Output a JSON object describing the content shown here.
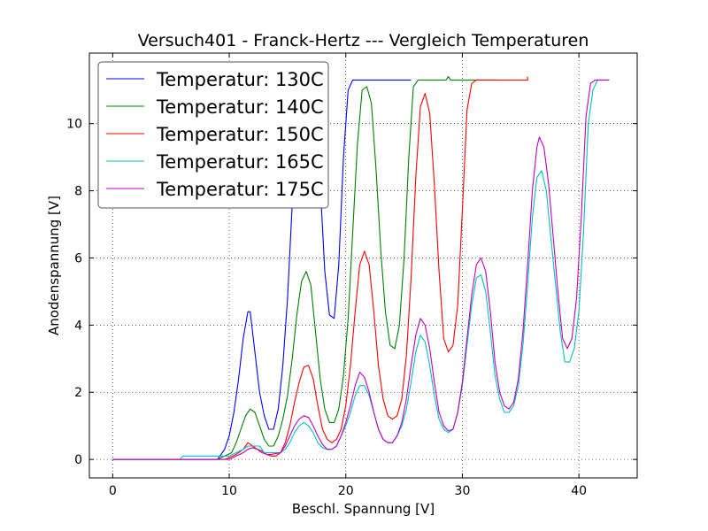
{
  "chart_data": {
    "type": "line",
    "title": "Versuch401 - Franck-Hertz --- Vergleich Temperaturen",
    "xlabel": "Beschl. Spannung [V]",
    "ylabel": "Anodenspannung [V]",
    "xlim": [
      -2,
      45
    ],
    "ylim": [
      -0.55,
      12.1
    ],
    "xticks": [
      0,
      10,
      20,
      30,
      40
    ],
    "yticks": [
      0,
      2,
      4,
      6,
      8,
      10
    ],
    "grid": true,
    "legend_position": "top-left",
    "series": [
      {
        "name": "Temperatur: 130C",
        "color": "#0000ff",
        "points": [
          [
            0,
            0
          ],
          [
            9,
            0
          ],
          [
            9.6,
            0.3
          ],
          [
            10,
            0.7
          ],
          [
            10.4,
            1.4
          ],
          [
            10.8,
            2.4
          ],
          [
            11.2,
            3.6
          ],
          [
            11.6,
            4.4
          ],
          [
            11.8,
            4.4
          ],
          [
            12.2,
            3.2
          ],
          [
            12.6,
            2.0
          ],
          [
            13,
            1.3
          ],
          [
            13.4,
            0.9
          ],
          [
            13.8,
            0.9
          ],
          [
            14.2,
            1.5
          ],
          [
            14.6,
            2.8
          ],
          [
            15,
            4.8
          ],
          [
            15.4,
            7.6
          ],
          [
            15.8,
            9.8
          ],
          [
            16.2,
            11.0
          ],
          [
            16.6,
            11.2
          ],
          [
            17,
            11.2
          ],
          [
            17.4,
            10.6
          ],
          [
            17.8,
            8.2
          ],
          [
            18.2,
            5.6
          ],
          [
            18.6,
            4.3
          ],
          [
            19,
            4.2
          ],
          [
            19.4,
            5.8
          ],
          [
            19.8,
            9.0
          ],
          [
            20.2,
            11.0
          ],
          [
            20.6,
            11.3
          ],
          [
            25.6,
            11.3
          ]
        ]
      },
      {
        "name": "Temperatur: 140C",
        "color": "#008000",
        "points": [
          [
            0,
            0
          ],
          [
            9,
            0
          ],
          [
            9.6,
            0.1
          ],
          [
            10.2,
            0.2
          ],
          [
            10.6,
            0.5
          ],
          [
            11,
            0.9
          ],
          [
            11.4,
            1.3
          ],
          [
            11.8,
            1.5
          ],
          [
            12.2,
            1.4
          ],
          [
            12.6,
            1.0
          ],
          [
            13,
            0.6
          ],
          [
            13.4,
            0.4
          ],
          [
            13.8,
            0.4
          ],
          [
            14.2,
            0.7
          ],
          [
            14.6,
            1.2
          ],
          [
            15,
            1.9
          ],
          [
            15.4,
            3.0
          ],
          [
            15.8,
            4.3
          ],
          [
            16.2,
            5.3
          ],
          [
            16.6,
            5.6
          ],
          [
            17,
            5.2
          ],
          [
            17.4,
            3.8
          ],
          [
            17.8,
            2.4
          ],
          [
            18.2,
            1.5
          ],
          [
            18.6,
            1.1
          ],
          [
            19,
            1.1
          ],
          [
            19.4,
            1.5
          ],
          [
            19.8,
            2.5
          ],
          [
            20.2,
            4.2
          ],
          [
            20.6,
            6.8
          ],
          [
            21,
            9.4
          ],
          [
            21.4,
            11.0
          ],
          [
            21.8,
            11.1
          ],
          [
            22.2,
            10.6
          ],
          [
            22.6,
            8.6
          ],
          [
            23,
            6.2
          ],
          [
            23.4,
            4.4
          ],
          [
            23.8,
            3.4
          ],
          [
            24.2,
            3.3
          ],
          [
            24.6,
            4.0
          ],
          [
            25,
            6.0
          ],
          [
            25.4,
            9.0
          ],
          [
            25.8,
            11.1
          ],
          [
            26.2,
            11.3
          ],
          [
            28.6,
            11.3
          ],
          [
            28.8,
            11.4
          ],
          [
            29,
            11.3
          ],
          [
            33,
            11.3
          ]
        ]
      },
      {
        "name": "Temperatur: 150C",
        "color": "#ff0000",
        "points": [
          [
            0,
            0
          ],
          [
            9.6,
            0
          ],
          [
            10,
            0.05
          ],
          [
            10.6,
            0.15
          ],
          [
            11.2,
            0.3
          ],
          [
            11.6,
            0.5
          ],
          [
            12,
            0.4
          ],
          [
            12.4,
            0.3
          ],
          [
            12.8,
            0.25
          ],
          [
            13.2,
            0.15
          ],
          [
            13.6,
            0.1
          ],
          [
            14,
            0.1
          ],
          [
            14.4,
            0.2
          ],
          [
            14.8,
            0.5
          ],
          [
            15.2,
            1.0
          ],
          [
            15.6,
            1.7
          ],
          [
            16,
            2.3
          ],
          [
            16.4,
            2.75
          ],
          [
            16.8,
            2.8
          ],
          [
            17.2,
            2.4
          ],
          [
            17.6,
            1.6
          ],
          [
            18,
            0.9
          ],
          [
            18.4,
            0.6
          ],
          [
            18.8,
            0.5
          ],
          [
            19.2,
            0.6
          ],
          [
            19.6,
            0.9
          ],
          [
            20,
            1.6
          ],
          [
            20.4,
            2.8
          ],
          [
            20.8,
            4.4
          ],
          [
            21.2,
            5.8
          ],
          [
            21.6,
            6.2
          ],
          [
            22,
            5.8
          ],
          [
            22.4,
            4.4
          ],
          [
            22.8,
            2.8
          ],
          [
            23.2,
            1.8
          ],
          [
            23.6,
            1.3
          ],
          [
            24,
            1.2
          ],
          [
            24.4,
            1.3
          ],
          [
            24.8,
            1.8
          ],
          [
            25.2,
            3.1
          ],
          [
            25.6,
            5.4
          ],
          [
            26,
            8.4
          ],
          [
            26.4,
            10.5
          ],
          [
            26.8,
            10.9
          ],
          [
            27.2,
            10.3
          ],
          [
            27.6,
            8.2
          ],
          [
            28,
            5.6
          ],
          [
            28.4,
            3.6
          ],
          [
            28.8,
            3.2
          ],
          [
            29.2,
            3.4
          ],
          [
            29.6,
            4.6
          ],
          [
            30,
            7.4
          ],
          [
            30.4,
            10.4
          ],
          [
            30.8,
            11.2
          ],
          [
            31.2,
            11.3
          ],
          [
            35.6,
            11.3
          ],
          [
            35.6,
            11.4
          ]
        ]
      },
      {
        "name": "Temperatur: 165C",
        "color": "#00bfbf",
        "points": [
          [
            0,
            0
          ],
          [
            5.8,
            0
          ],
          [
            6,
            0.1
          ],
          [
            10,
            0.1
          ],
          [
            10.6,
            0.2
          ],
          [
            11.2,
            0.3
          ],
          [
            11.6,
            0.4
          ],
          [
            12,
            0.4
          ],
          [
            12.6,
            0.4
          ],
          [
            13,
            0.2
          ],
          [
            13.6,
            0.2
          ],
          [
            14.4,
            0.2
          ],
          [
            14.8,
            0.3
          ],
          [
            15.2,
            0.5
          ],
          [
            15.6,
            0.8
          ],
          [
            16,
            1.0
          ],
          [
            16.4,
            1.1
          ],
          [
            16.8,
            1.0
          ],
          [
            17.2,
            0.8
          ],
          [
            17.6,
            0.5
          ],
          [
            18,
            0.35
          ],
          [
            18.4,
            0.3
          ],
          [
            18.8,
            0.3
          ],
          [
            19.2,
            0.4
          ],
          [
            19.6,
            0.7
          ],
          [
            20,
            1.0
          ],
          [
            20.4,
            1.4
          ],
          [
            20.8,
            1.9
          ],
          [
            21.2,
            2.2
          ],
          [
            21.6,
            2.2
          ],
          [
            22,
            1.9
          ],
          [
            22.4,
            1.4
          ],
          [
            22.8,
            0.9
          ],
          [
            23.2,
            0.6
          ],
          [
            23.6,
            0.5
          ],
          [
            24,
            0.5
          ],
          [
            24.4,
            0.7
          ],
          [
            24.8,
            1.0
          ],
          [
            25.2,
            1.5
          ],
          [
            25.6,
            2.3
          ],
          [
            26,
            3.2
          ],
          [
            26.4,
            3.7
          ],
          [
            26.8,
            3.5
          ],
          [
            27.2,
            2.8
          ],
          [
            27.6,
            1.9
          ],
          [
            28,
            1.2
          ],
          [
            28.4,
            0.9
          ],
          [
            28.8,
            0.8
          ],
          [
            29.2,
            0.9
          ],
          [
            29.6,
            1.4
          ],
          [
            30,
            2.2
          ],
          [
            30.4,
            3.4
          ],
          [
            30.8,
            4.6
          ],
          [
            31.2,
            5.4
          ],
          [
            31.6,
            5.5
          ],
          [
            32,
            5.0
          ],
          [
            32.4,
            3.8
          ],
          [
            32.8,
            2.5
          ],
          [
            33.2,
            1.8
          ],
          [
            33.6,
            1.4
          ],
          [
            34,
            1.4
          ],
          [
            34.4,
            1.6
          ],
          [
            34.8,
            2.2
          ],
          [
            35.2,
            3.4
          ],
          [
            35.6,
            5.2
          ],
          [
            36,
            7.2
          ],
          [
            36.4,
            8.4
          ],
          [
            36.8,
            8.6
          ],
          [
            37.2,
            8.0
          ],
          [
            37.6,
            6.6
          ],
          [
            38,
            5.2
          ],
          [
            38.4,
            3.8
          ],
          [
            38.8,
            2.9
          ],
          [
            39.2,
            2.9
          ],
          [
            39.6,
            3.3
          ],
          [
            40,
            4.4
          ],
          [
            40.4,
            6.8
          ],
          [
            40.8,
            10.0
          ],
          [
            41.2,
            11.0
          ],
          [
            41.6,
            11.3
          ],
          [
            42,
            11.3
          ],
          [
            42.6,
            11.3
          ]
        ]
      },
      {
        "name": "Temperatur: 175C",
        "color": "#bf00bf",
        "points": [
          [
            0,
            0
          ],
          [
            10,
            0
          ],
          [
            10.6,
            0.1
          ],
          [
            11.2,
            0.2
          ],
          [
            11.6,
            0.3
          ],
          [
            12,
            0.35
          ],
          [
            12.4,
            0.3
          ],
          [
            12.8,
            0.2
          ],
          [
            13.2,
            0.15
          ],
          [
            13.6,
            0.15
          ],
          [
            14.4,
            0.2
          ],
          [
            14.8,
            0.4
          ],
          [
            15.2,
            0.7
          ],
          [
            15.6,
            1.0
          ],
          [
            16,
            1.2
          ],
          [
            16.4,
            1.3
          ],
          [
            16.8,
            1.25
          ],
          [
            17.2,
            1.0
          ],
          [
            17.6,
            0.7
          ],
          [
            18,
            0.45
          ],
          [
            18.4,
            0.3
          ],
          [
            18.8,
            0.3
          ],
          [
            19.2,
            0.4
          ],
          [
            19.6,
            0.7
          ],
          [
            20,
            1.1
          ],
          [
            20.4,
            1.6
          ],
          [
            20.8,
            2.2
          ],
          [
            21.2,
            2.6
          ],
          [
            21.6,
            2.45
          ],
          [
            22,
            2.0
          ],
          [
            22.4,
            1.4
          ],
          [
            22.8,
            0.9
          ],
          [
            23.2,
            0.6
          ],
          [
            23.6,
            0.5
          ],
          [
            24,
            0.5
          ],
          [
            24.4,
            0.7
          ],
          [
            24.8,
            1.1
          ],
          [
            25.2,
            1.8
          ],
          [
            25.6,
            2.8
          ],
          [
            26,
            3.7
          ],
          [
            26.4,
            4.2
          ],
          [
            26.8,
            4.0
          ],
          [
            27.2,
            3.3
          ],
          [
            27.6,
            2.3
          ],
          [
            28,
            1.4
          ],
          [
            28.4,
            1.0
          ],
          [
            28.8,
            0.85
          ],
          [
            29.2,
            0.9
          ],
          [
            29.6,
            1.4
          ],
          [
            30,
            2.3
          ],
          [
            30.4,
            3.6
          ],
          [
            30.8,
            4.9
          ],
          [
            31.2,
            5.8
          ],
          [
            31.6,
            6.0
          ],
          [
            32,
            5.6
          ],
          [
            32.4,
            4.4
          ],
          [
            32.8,
            2.9
          ],
          [
            33.2,
            2.0
          ],
          [
            33.6,
            1.6
          ],
          [
            34,
            1.5
          ],
          [
            34.4,
            1.7
          ],
          [
            34.8,
            2.4
          ],
          [
            35.2,
            3.8
          ],
          [
            35.6,
            5.8
          ],
          [
            36,
            8.0
          ],
          [
            36.4,
            9.3
          ],
          [
            36.6,
            9.6
          ],
          [
            37,
            9.3
          ],
          [
            37.4,
            8.2
          ],
          [
            37.8,
            6.6
          ],
          [
            38.2,
            5.0
          ],
          [
            38.6,
            3.6
          ],
          [
            39,
            3.3
          ],
          [
            39.4,
            3.6
          ],
          [
            39.8,
            4.8
          ],
          [
            40.2,
            7.2
          ],
          [
            40.6,
            10.2
          ],
          [
            41,
            11.2
          ],
          [
            41.4,
            11.3
          ],
          [
            42.6,
            11.3
          ]
        ]
      }
    ]
  }
}
